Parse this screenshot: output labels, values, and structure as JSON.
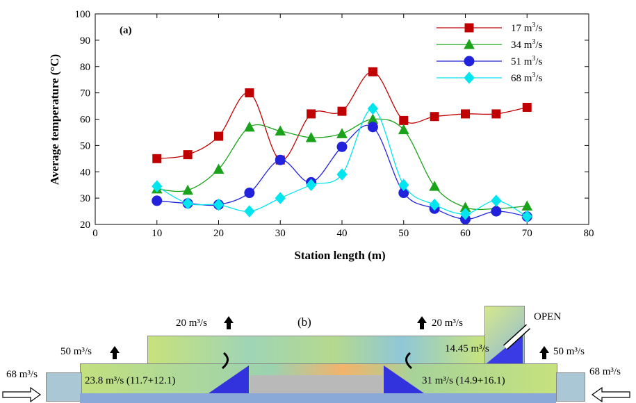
{
  "panel_a_label": "(a)",
  "panel_b_label": "(b)",
  "chart_data": {
    "type": "line",
    "title": "",
    "xlabel": "Station length (m)",
    "ylabel": "Average temperature (°C)",
    "xlim": [
      0,
      80
    ],
    "ylim": [
      20,
      100
    ],
    "x_ticks": [
      0,
      10,
      20,
      30,
      40,
      50,
      60,
      70,
      80
    ],
    "y_ticks": [
      20,
      30,
      40,
      50,
      60,
      70,
      80,
      90,
      100
    ],
    "grid": false,
    "legend_position": "top-right",
    "x": [
      10,
      15,
      20,
      25,
      30,
      35,
      40,
      45,
      50,
      55,
      60,
      65,
      70
    ],
    "series": [
      {
        "name": "17 m3/s",
        "color": "#c00000",
        "marker": "square",
        "values": [
          45,
          46.5,
          53.5,
          70,
          44.5,
          62,
          63,
          78,
          59.5,
          61,
          62,
          62,
          64.5
        ]
      },
      {
        "name": "34 m3/s",
        "color": "#1aa31a",
        "marker": "triangle",
        "values": [
          33.5,
          33,
          41,
          57,
          55.5,
          53,
          54.5,
          60,
          56,
          34.5,
          26.5,
          26,
          27
        ]
      },
      {
        "name": "51 m3/s",
        "color": "#2222dd",
        "marker": "circle",
        "values": [
          29,
          28,
          27.5,
          32,
          44.5,
          36,
          49.5,
          57,
          32,
          26,
          22,
          25,
          23
        ]
      },
      {
        "name": "68 m3/s",
        "color": "#00e5ee",
        "marker": "diamond",
        "values": [
          34.5,
          28,
          27.5,
          25,
          30,
          35,
          39,
          64,
          35,
          27.5,
          24,
          29,
          23
        ]
      }
    ]
  },
  "legend": [
    {
      "num": "17",
      "unit": "m",
      "sup": "3",
      "tail": "/s"
    },
    {
      "num": "34",
      "unit": "m",
      "sup": "3",
      "tail": "/s"
    },
    {
      "num": "51",
      "unit": "m",
      "sup": "3",
      "tail": "/s"
    },
    {
      "num": "68",
      "unit": "m",
      "sup": "3",
      "tail": "/s"
    }
  ],
  "diagram": {
    "open_label": "OPEN",
    "flow_top_left": "20 m³/s",
    "flow_top_right": "20 m³/s",
    "flow_mid_left": "50 m³/s",
    "flow_mid_right": "50 m³/s",
    "flow_in_left": "68 m³/s",
    "flow_in_right": "68 m³/s",
    "flow_open": "14.45 m³/s",
    "flow_stair_left": "23.8 m³/s (11.7+12.1)",
    "flow_stair_right": "31 m³/s (14.9+16.1)"
  }
}
